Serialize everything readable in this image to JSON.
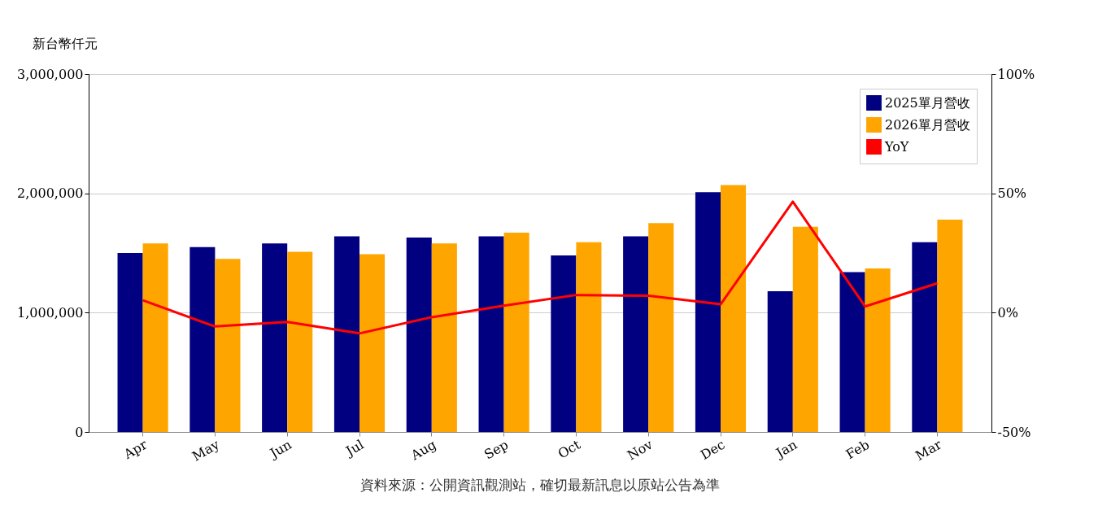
{
  "chart_data": {
    "type": "bar",
    "ylabel": "新台幣仟元",
    "categories": [
      "Apr",
      "May",
      "Jun",
      "Jul",
      "Aug",
      "Sep",
      "Oct",
      "Nov",
      "Dec",
      "Jan",
      "Feb",
      "Mar"
    ],
    "series": [
      {
        "name": "2025單月營收",
        "color": "#000080",
        "values": [
          1500000,
          1550000,
          1580000,
          1640000,
          1630000,
          1640000,
          1480000,
          1640000,
          2010000,
          1180000,
          1340000,
          1590000
        ]
      },
      {
        "name": "2026單月營收",
        "color": "#ffa500",
        "values": [
          1580000,
          1450000,
          1510000,
          1490000,
          1580000,
          1670000,
          1590000,
          1750000,
          2070000,
          1720000,
          1370000,
          1780000
        ]
      },
      {
        "name": "YoY",
        "type": "line",
        "axis": "y2",
        "color": "#ff0000",
        "values": [
          5.2,
          -5.8,
          -3.9,
          -8.7,
          -1.9,
          2.9,
          7.4,
          7.1,
          3.5,
          46.5,
          2.6,
          12.3
        ]
      }
    ],
    "ylim": [
      0,
      3000000
    ],
    "yticks": [
      {
        "value": 0,
        "label": "0"
      },
      {
        "value": 1000000,
        "label": "1,000,000"
      },
      {
        "value": 2000000,
        "label": "2,000,000"
      },
      {
        "value": 3000000,
        "label": "3,000,000"
      }
    ],
    "y2lim": [
      -50,
      100
    ],
    "y2ticks": [
      {
        "value": -50,
        "label": "-50%"
      },
      {
        "value": 0,
        "label": "0%"
      },
      {
        "value": 50,
        "label": "50%"
      },
      {
        "value": 100,
        "label": "100%"
      }
    ],
    "grid": "y",
    "legend": "top right",
    "marker": "none",
    "line_style": "solid",
    "annotations": [
      "資料來源：公開資訊觀測站，確切最新訊息以原站公告為準"
    ]
  }
}
